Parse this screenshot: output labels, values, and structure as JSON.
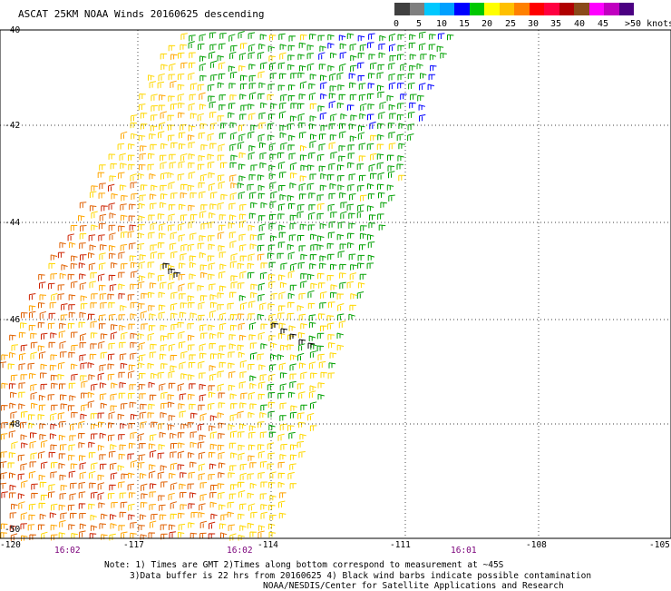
{
  "title": "ASCAT 25KM NOAA Winds 20160625 descending",
  "legend": {
    "colors": [
      "#404040",
      "#7f7f7f",
      "#00c8ff",
      "#00a0ff",
      "#0000ff",
      "#00c800",
      "#ffff00",
      "#ffc000",
      "#ff8000",
      "#ff0000",
      "#ff0040",
      "#b00000",
      "#8a4a1a",
      "#ff00ff",
      "#c000c0",
      "#4b0082"
    ],
    "ticks": [
      "0",
      "5",
      "10",
      "15",
      "20",
      "25",
      "30",
      "35",
      "40",
      "45"
    ],
    "unit_label": ">50 knots"
  },
  "axes": {
    "lat_labels": [
      "-40",
      "-42",
      "-44",
      "-46",
      "-48",
      "-50"
    ],
    "lon_labels": [
      "-120",
      "-117",
      "-114",
      "-111",
      "-108",
      "-105"
    ],
    "pass_times": [
      "16:02",
      "16:02",
      "16:01"
    ]
  },
  "notes": {
    "line1": "Note: 1) Times are GMT 2)Times along bottom correspond to measurement at ~45S",
    "line2": "3)Data buffer is 22 hrs from 20160625 4) Black wind barbs indicate possible contamination",
    "line3": "NOAA/NESDIS/Center for Satellite Applications and Research"
  },
  "wind_colors": {
    "green": "#00a000",
    "blue": "#0000ff",
    "yellow": "#ffd700",
    "orange": "#ffa500",
    "darkorange": "#e06000",
    "red": "#cc2200",
    "black": "#000000"
  }
}
